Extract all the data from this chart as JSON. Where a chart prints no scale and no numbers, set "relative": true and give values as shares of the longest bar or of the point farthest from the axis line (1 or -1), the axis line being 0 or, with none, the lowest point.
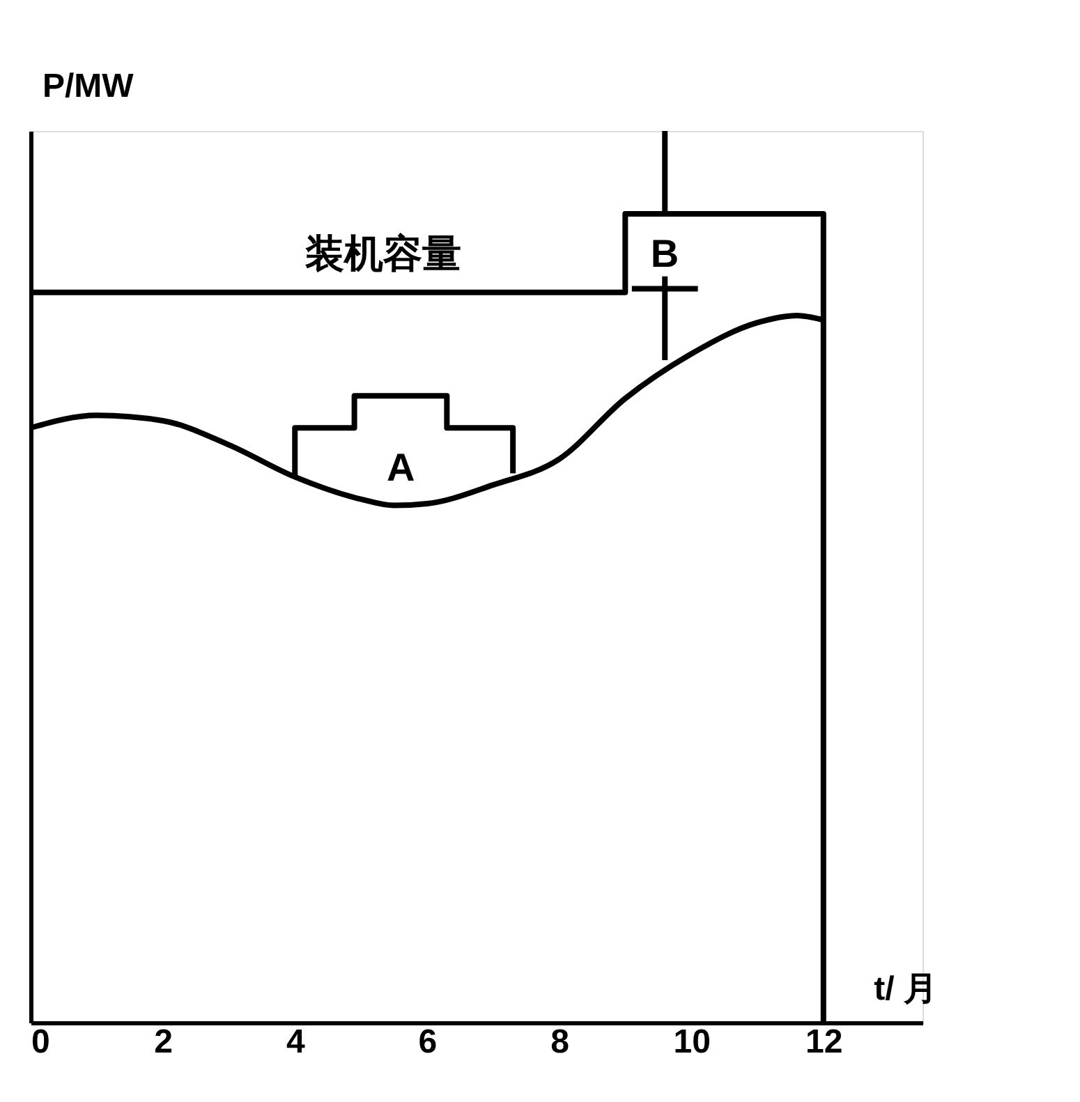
{
  "chart_data": {
    "type": "line",
    "relative": true,
    "xlabel": "t/ 月",
    "ylabel": "P/MW",
    "xlim": [
      0,
      13.5
    ],
    "xticks": [
      0,
      2,
      4,
      6,
      8,
      10,
      12
    ],
    "grid": false,
    "tick_labels": "x",
    "line_style": "solid",
    "marker": "none",
    "series": [
      {
        "color": "#000000",
        "x": [
          0,
          1,
          2,
          3,
          4,
          5,
          5.5,
          6,
          7,
          8,
          9,
          10,
          11,
          11.6,
          12
        ],
        "values": [
          0.667,
          0.681,
          0.675,
          0.648,
          0.612,
          0.587,
          0.58,
          0.582,
          0.603,
          0.632,
          0.7,
          0.75,
          0.785,
          0.793,
          0.788
        ]
      },
      {
        "type": "line",
        "color": "#000000",
        "x": [
          0,
          9,
          9,
          12,
          12
        ],
        "values": [
          0.819,
          0.819,
          0.907,
          0.907,
          0
        ]
      },
      {
        "type": "line",
        "color": "#000000",
        "x": [
          4,
          4,
          4.9,
          4.9,
          6.3,
          6.3,
          7.3,
          7.3
        ],
        "values": [
          0.612,
          0.667,
          0.667,
          0.703,
          0.703,
          0.667,
          0.667,
          0.616
        ]
      },
      {
        "type": "line",
        "color": "#000000",
        "x": [
          9.6,
          9.6
        ],
        "values": [
          1.0,
          0.907
        ]
      },
      {
        "type": "line",
        "color": "#000000",
        "x": [
          9.6,
          9.6
        ],
        "values": [
          0.837,
          0.743
        ]
      },
      {
        "type": "line",
        "color": "#000000",
        "x": [
          9.1,
          10.1
        ],
        "values": [
          0.823,
          0.823
        ]
      }
    ],
    "annotations": [
      "装机容量",
      "A",
      "B"
    ]
  }
}
